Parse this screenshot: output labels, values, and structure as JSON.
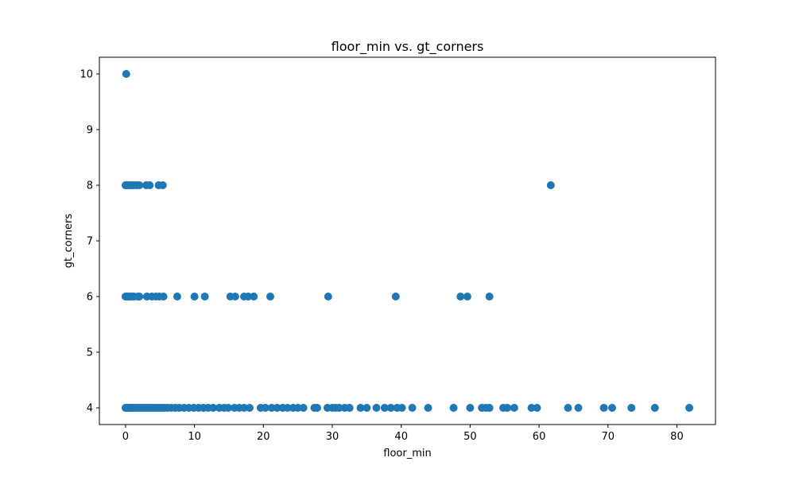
{
  "chart_data": {
    "type": "scatter",
    "title": "floor_min vs. gt_corners",
    "xlabel": "floor_min",
    "ylabel": "gt_corners",
    "xlim": [
      -3.8,
      85.6
    ],
    "ylim": [
      3.7,
      10.3
    ],
    "xticks": [
      0,
      10,
      20,
      30,
      40,
      50,
      60,
      70,
      80
    ],
    "yticks": [
      4,
      5,
      6,
      7,
      8,
      9,
      10
    ],
    "grid": false,
    "marker_color": "#1f77b4",
    "points": [
      {
        "x": 0.1,
        "y": 10
      },
      {
        "x": 0.0,
        "y": 8
      },
      {
        "x": 0.2,
        "y": 8
      },
      {
        "x": 0.4,
        "y": 8
      },
      {
        "x": 0.6,
        "y": 8
      },
      {
        "x": 0.9,
        "y": 8
      },
      {
        "x": 1.2,
        "y": 8
      },
      {
        "x": 1.6,
        "y": 8
      },
      {
        "x": 2.0,
        "y": 8
      },
      {
        "x": 3.0,
        "y": 8
      },
      {
        "x": 3.5,
        "y": 8
      },
      {
        "x": 4.8,
        "y": 8
      },
      {
        "x": 5.4,
        "y": 8
      },
      {
        "x": 61.7,
        "y": 8
      },
      {
        "x": 0.0,
        "y": 6
      },
      {
        "x": 0.1,
        "y": 6
      },
      {
        "x": 0.2,
        "y": 6
      },
      {
        "x": 0.3,
        "y": 6
      },
      {
        "x": 0.5,
        "y": 6
      },
      {
        "x": 0.7,
        "y": 6
      },
      {
        "x": 0.9,
        "y": 6
      },
      {
        "x": 1.2,
        "y": 6
      },
      {
        "x": 1.8,
        "y": 6
      },
      {
        "x": 2.0,
        "y": 6
      },
      {
        "x": 3.1,
        "y": 6
      },
      {
        "x": 3.8,
        "y": 6
      },
      {
        "x": 4.4,
        "y": 6
      },
      {
        "x": 4.9,
        "y": 6
      },
      {
        "x": 5.5,
        "y": 6
      },
      {
        "x": 7.5,
        "y": 6
      },
      {
        "x": 10.0,
        "y": 6
      },
      {
        "x": 11.5,
        "y": 6
      },
      {
        "x": 15.2,
        "y": 6
      },
      {
        "x": 15.9,
        "y": 6
      },
      {
        "x": 17.2,
        "y": 6
      },
      {
        "x": 17.8,
        "y": 6
      },
      {
        "x": 18.6,
        "y": 6
      },
      {
        "x": 21.0,
        "y": 6
      },
      {
        "x": 29.4,
        "y": 6
      },
      {
        "x": 39.2,
        "y": 6
      },
      {
        "x": 48.6,
        "y": 6
      },
      {
        "x": 49.6,
        "y": 6
      },
      {
        "x": 52.8,
        "y": 6
      },
      {
        "x": 0.0,
        "y": 4
      },
      {
        "x": 0.1,
        "y": 4
      },
      {
        "x": 0.2,
        "y": 4
      },
      {
        "x": 0.3,
        "y": 4
      },
      {
        "x": 0.4,
        "y": 4
      },
      {
        "x": 0.5,
        "y": 4
      },
      {
        "x": 0.7,
        "y": 4
      },
      {
        "x": 0.9,
        "y": 4
      },
      {
        "x": 1.1,
        "y": 4
      },
      {
        "x": 1.3,
        "y": 4
      },
      {
        "x": 1.5,
        "y": 4
      },
      {
        "x": 1.8,
        "y": 4
      },
      {
        "x": 2.1,
        "y": 4
      },
      {
        "x": 2.4,
        "y": 4
      },
      {
        "x": 2.7,
        "y": 4
      },
      {
        "x": 3.0,
        "y": 4
      },
      {
        "x": 3.3,
        "y": 4
      },
      {
        "x": 3.6,
        "y": 4
      },
      {
        "x": 3.9,
        "y": 4
      },
      {
        "x": 4.2,
        "y": 4
      },
      {
        "x": 4.5,
        "y": 4
      },
      {
        "x": 4.8,
        "y": 4
      },
      {
        "x": 5.1,
        "y": 4
      },
      {
        "x": 5.4,
        "y": 4
      },
      {
        "x": 5.7,
        "y": 4
      },
      {
        "x": 6.1,
        "y": 4
      },
      {
        "x": 6.6,
        "y": 4
      },
      {
        "x": 7.2,
        "y": 4
      },
      {
        "x": 7.8,
        "y": 4
      },
      {
        "x": 8.5,
        "y": 4
      },
      {
        "x": 9.2,
        "y": 4
      },
      {
        "x": 9.9,
        "y": 4
      },
      {
        "x": 10.6,
        "y": 4
      },
      {
        "x": 11.3,
        "y": 4
      },
      {
        "x": 12.0,
        "y": 4
      },
      {
        "x": 12.7,
        "y": 4
      },
      {
        "x": 13.6,
        "y": 4
      },
      {
        "x": 14.3,
        "y": 4
      },
      {
        "x": 14.9,
        "y": 4
      },
      {
        "x": 15.8,
        "y": 4
      },
      {
        "x": 16.5,
        "y": 4
      },
      {
        "x": 17.2,
        "y": 4
      },
      {
        "x": 18.0,
        "y": 4
      },
      {
        "x": 19.6,
        "y": 4
      },
      {
        "x": 20.3,
        "y": 4
      },
      {
        "x": 21.2,
        "y": 4
      },
      {
        "x": 22.0,
        "y": 4
      },
      {
        "x": 22.8,
        "y": 4
      },
      {
        "x": 23.5,
        "y": 4
      },
      {
        "x": 24.3,
        "y": 4
      },
      {
        "x": 25.0,
        "y": 4
      },
      {
        "x": 25.8,
        "y": 4
      },
      {
        "x": 27.4,
        "y": 4
      },
      {
        "x": 27.8,
        "y": 4
      },
      {
        "x": 29.3,
        "y": 4
      },
      {
        "x": 30.0,
        "y": 4
      },
      {
        "x": 30.5,
        "y": 4
      },
      {
        "x": 31.0,
        "y": 4
      },
      {
        "x": 31.8,
        "y": 4
      },
      {
        "x": 32.5,
        "y": 4
      },
      {
        "x": 34.1,
        "y": 4
      },
      {
        "x": 35.0,
        "y": 4
      },
      {
        "x": 36.4,
        "y": 4
      },
      {
        "x": 37.6,
        "y": 4
      },
      {
        "x": 38.5,
        "y": 4
      },
      {
        "x": 39.4,
        "y": 4
      },
      {
        "x": 40.1,
        "y": 4
      },
      {
        "x": 41.6,
        "y": 4
      },
      {
        "x": 43.9,
        "y": 4
      },
      {
        "x": 47.6,
        "y": 4
      },
      {
        "x": 50.0,
        "y": 4
      },
      {
        "x": 51.7,
        "y": 4
      },
      {
        "x": 52.3,
        "y": 4
      },
      {
        "x": 52.8,
        "y": 4
      },
      {
        "x": 54.8,
        "y": 4
      },
      {
        "x": 55.4,
        "y": 4
      },
      {
        "x": 56.4,
        "y": 4
      },
      {
        "x": 58.9,
        "y": 4
      },
      {
        "x": 59.7,
        "y": 4
      },
      {
        "x": 64.2,
        "y": 4
      },
      {
        "x": 65.7,
        "y": 4
      },
      {
        "x": 69.4,
        "y": 4
      },
      {
        "x": 70.6,
        "y": 4
      },
      {
        "x": 73.4,
        "y": 4
      },
      {
        "x": 76.8,
        "y": 4
      },
      {
        "x": 81.8,
        "y": 4
      }
    ]
  }
}
